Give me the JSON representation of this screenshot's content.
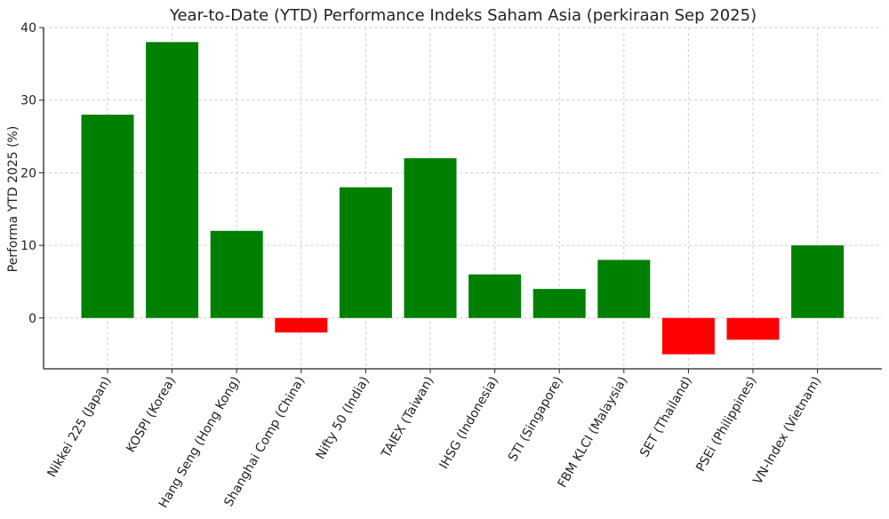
{
  "chart_data": {
    "type": "bar",
    "title": "Year-to-Date (YTD) Performance Indeks Saham Asia (perkiraan Sep 2025)",
    "xlabel": "",
    "ylabel": "Performa YTD 2025 (%)",
    "ylim": [
      -7,
      40
    ],
    "yticks": [
      0,
      10,
      20,
      30,
      40
    ],
    "grid": true,
    "categories": [
      "Nikkei 225 (Japan)",
      "KOSPI (Korea)",
      "Hang Seng (Hong Kong)",
      "Shanghai Comp (China)",
      "Nifty 50 (India)",
      "TAIEX (Taiwan)",
      "IHSG (Indonesia)",
      "STI (Singapore)",
      "FBM KLCI (Malaysia)",
      "SET (Thailand)",
      "PSEi (Philippines)",
      "VN-Index (Vietnam)"
    ],
    "values": [
      28,
      38,
      12,
      -2,
      18,
      22,
      6,
      4,
      8,
      -5,
      -3,
      10
    ],
    "colors": {
      "positive": "#008000",
      "negative": "#ff0000"
    }
  }
}
